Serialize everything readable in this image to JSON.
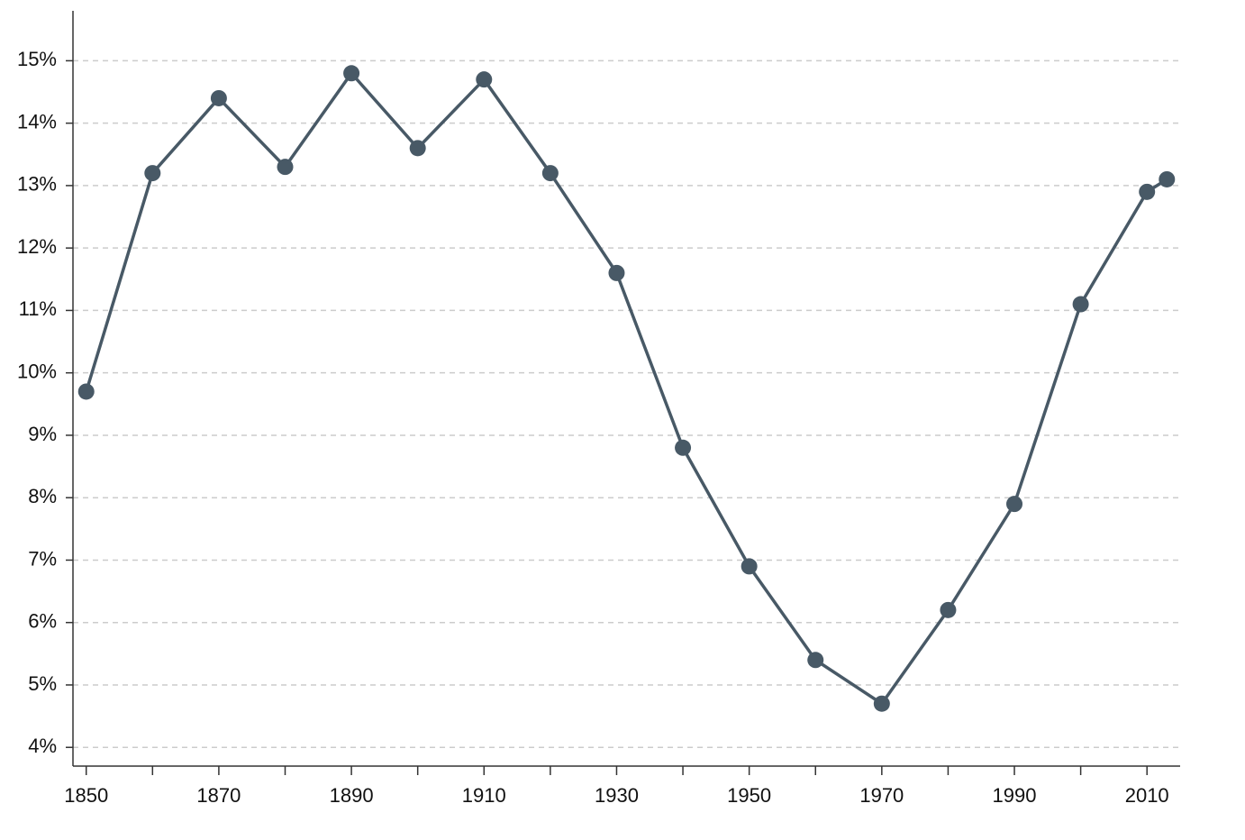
{
  "chart_data": {
    "type": "line",
    "x": [
      1850,
      1860,
      1870,
      1880,
      1890,
      1900,
      1910,
      1920,
      1930,
      1940,
      1950,
      1960,
      1970,
      1980,
      1990,
      2000,
      2010,
      2013
    ],
    "series": [
      {
        "color": "#485966",
        "values": [
          9.7,
          13.2,
          14.4,
          13.3,
          14.8,
          13.6,
          14.7,
          13.2,
          11.6,
          8.8,
          6.9,
          5.4,
          4.7,
          6.2,
          7.9,
          11.1,
          12.9,
          13.1
        ]
      }
    ],
    "xlim": [
      1848,
      2015
    ],
    "xticks": [
      1850,
      1870,
      1890,
      1910,
      1930,
      1950,
      1970,
      1990,
      2010
    ],
    "x_minor_ticks": [
      1860,
      1880,
      1900,
      1920,
      1940,
      1960,
      1980,
      2000
    ],
    "ylim": [
      3.7,
      15.8
    ],
    "yticks": [
      {
        "value": 4,
        "label": "4%"
      },
      {
        "value": 5,
        "label": "5%"
      },
      {
        "value": 6,
        "label": "6%"
      },
      {
        "value": 7,
        "label": "7%"
      },
      {
        "value": 8,
        "label": "8%"
      },
      {
        "value": 9,
        "label": "9%"
      },
      {
        "value": 10,
        "label": "10%"
      },
      {
        "value": 11,
        "label": "11%"
      },
      {
        "value": 12,
        "label": "12%"
      },
      {
        "value": 13,
        "label": "13%"
      },
      {
        "value": 14,
        "label": "14%"
      },
      {
        "value": 15,
        "label": "15%"
      }
    ],
    "grid": true
  }
}
